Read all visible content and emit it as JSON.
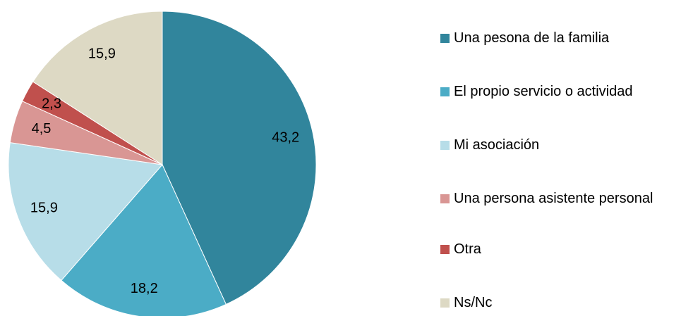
{
  "chart_data": {
    "type": "pie",
    "categories": [
      "Una pesona de la familia",
      "El propio servicio o actividad",
      "Mi asociación",
      "Una persona asistente personal",
      "Otra",
      "Ns/Nc"
    ],
    "values": [
      43.2,
      18.2,
      15.9,
      4.5,
      2.3,
      15.9
    ],
    "value_labels": [
      "43,2",
      "18,2",
      "15,9",
      "4,5",
      "2,3",
      "15,9"
    ],
    "colors": [
      "#31859c",
      "#4bacc6",
      "#b7dde8",
      "#d99694",
      "#c0504d",
      "#ddd9c4"
    ],
    "legend": "right"
  }
}
